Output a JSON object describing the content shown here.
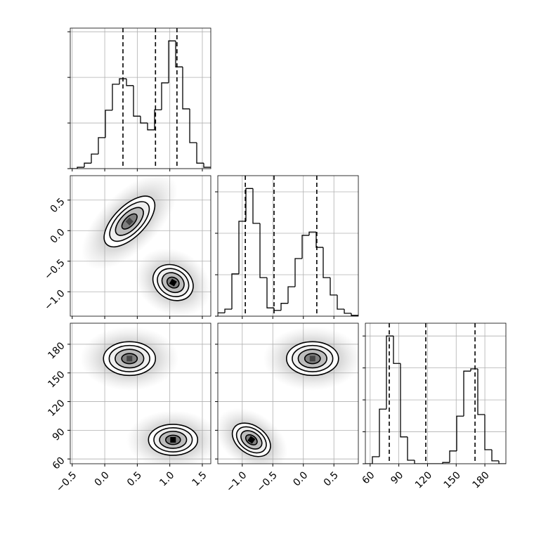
{
  "chart_data": [
    {
      "type": "histogram",
      "color": "#000000",
      "grid": true,
      "bins": [
        -0.53,
        -0.422,
        -0.314,
        -0.206,
        -0.098,
        0.01,
        0.118,
        0.226,
        0.334,
        0.442,
        0.55,
        0.658,
        0.766,
        0.874,
        0.982,
        1.09,
        1.198,
        1.306,
        1.414,
        1.522,
        1.63
      ],
      "counts": [
        0,
        0.03,
        0.12,
        0.32,
        0.68,
        1.28,
        1.85,
        1.97,
        1.82,
        1.15,
        1.0,
        0.85,
        1.29,
        1.88,
        2.8,
        2.23,
        1.31,
        0.57,
        0.12,
        0.03
      ],
      "quantiles": [
        0.28,
        0.78,
        1.11
      ],
      "xlim": [
        -0.53,
        1.63
      ],
      "xticks": [
        -0.5,
        0,
        0.5,
        1,
        1.5
      ],
      "ylim": [
        0,
        3.08
      ],
      "yticks": [
        0,
        1,
        2,
        3
      ]
    },
    {
      "type": "scatter",
      "grid": true,
      "clusters": [
        {
          "x": 0.38,
          "y": 0.15
        },
        {
          "x": 1.05,
          "y": -0.85
        }
      ],
      "xlim": [
        -0.53,
        1.63
      ],
      "xticks": [
        -0.5,
        0,
        0.5,
        1,
        1.5
      ],
      "ylim": [
        -1.4,
        0.9
      ],
      "yticks": [
        {
          "value": -1.0,
          "label": "−1.0"
        },
        {
          "value": -0.5,
          "label": "−0.5"
        },
        {
          "value": 0,
          "label": "0.0"
        },
        {
          "value": 0.5,
          "label": "0.5"
        }
      ]
    },
    {
      "type": "histogram",
      "color": "#000000",
      "grid": true,
      "bins": [
        -1.4,
        -1.285,
        -1.17,
        -1.055,
        -0.94,
        -0.825,
        -0.71,
        -0.595,
        -0.48,
        -0.365,
        -0.25,
        -0.135,
        -0.02,
        0.095,
        0.21,
        0.325,
        0.44,
        0.555,
        0.67,
        0.785,
        0.9
      ],
      "counts": [
        0.08,
        0.17,
        1.02,
        2.29,
        3.08,
        2.24,
        0.93,
        0.2,
        0.14,
        0.31,
        0.71,
        1.39,
        1.95,
        2.03,
        1.66,
        0.93,
        0.51,
        0.17,
        0.07,
        0.02
      ],
      "quantiles": [
        -0.95,
        -0.48,
        0.22
      ],
      "xlim": [
        -1.4,
        0.9
      ],
      "xticks": [
        -1.0,
        -0.5,
        0,
        0.5
      ],
      "ylim": [
        0,
        3.39
      ],
      "yticks": [
        0,
        1,
        2,
        3
      ]
    },
    {
      "type": "scatter",
      "grid": true,
      "clusters": [
        {
          "x": 0.38,
          "y": 165
        },
        {
          "x": 1.05,
          "y": 80
        }
      ],
      "xlim": [
        -0.53,
        1.63
      ],
      "xticks": [
        {
          "value": -0.5,
          "label": "−0.5"
        },
        {
          "value": 0,
          "label": "0.0"
        },
        {
          "value": 0.5,
          "label": "0.5"
        },
        {
          "value": 1,
          "label": "1.0"
        },
        {
          "value": 1.5,
          "label": "1.5"
        }
      ],
      "ylim": [
        55,
        202
      ],
      "yticks": [
        60,
        90,
        120,
        150,
        180
      ]
    },
    {
      "type": "scatter",
      "grid": true,
      "clusters": [
        {
          "x": 0.15,
          "y": 165
        },
        {
          "x": -0.85,
          "y": 80
        }
      ],
      "xlim": [
        -1.4,
        0.9
      ],
      "xticks": [
        {
          "value": -1.0,
          "label": "−1.0"
        },
        {
          "value": -0.5,
          "label": "−0.5"
        },
        {
          "value": 0,
          "label": "0.0"
        },
        {
          "value": 0.5,
          "label": "0.5"
        }
      ],
      "ylim": [
        55,
        202
      ],
      "yticks": [
        60,
        90,
        120,
        150,
        180
      ]
    },
    {
      "type": "histogram",
      "color": "#000000",
      "grid": true,
      "bins": [
        55,
        62.35,
        69.7,
        77.05,
        84.4,
        91.75,
        99.1,
        106.45,
        113.8,
        121.15,
        128.5,
        135.85,
        143.2,
        150.55,
        157.9,
        165.25,
        172.6,
        179.95,
        187.3,
        194.65,
        202
      ],
      "counts": [
        0,
        0.22,
        1.71,
        4.0,
        3.14,
        0.84,
        0.11,
        0,
        0,
        0,
        0,
        0.04,
        0.4,
        1.49,
        2.9,
        2.97,
        1.54,
        0.44,
        0.09,
        0
      ],
      "quantiles": [
        80,
        118.2,
        169.7
      ],
      "xlim": [
        55,
        202
      ],
      "xticks": [
        60,
        90,
        120,
        150,
        180
      ],
      "ylim": [
        0,
        4.4
      ],
      "yticks": [
        0,
        1,
        2,
        3,
        4
      ]
    }
  ]
}
